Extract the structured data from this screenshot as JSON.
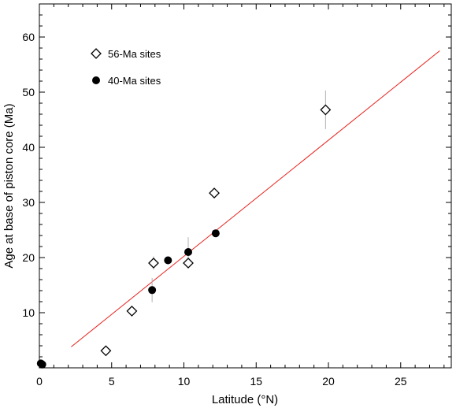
{
  "chart_data": {
    "type": "scatter",
    "title": "",
    "xlabel": "Latitude (°N)",
    "ylabel": "Age at base of piston core (Ma)",
    "xlim": [
      0,
      28.5
    ],
    "ylim": [
      0,
      66
    ],
    "x_ticks": [
      "0",
      "5",
      "10",
      "15",
      "20",
      "25"
    ],
    "x_tick_values": [
      0,
      5,
      10,
      15,
      20,
      25
    ],
    "y_ticks": [
      "10",
      "20",
      "30",
      "40",
      "50",
      "60"
    ],
    "y_tick_values": [
      10,
      20,
      30,
      40,
      50,
      60
    ],
    "grid": false,
    "legend_position": "top-left",
    "series": [
      {
        "name": "56-Ma sites",
        "marker": "open-diamond",
        "color": "#000000",
        "points": [
          {
            "x": 4.6,
            "y": 3.1
          },
          {
            "x": 6.4,
            "y": 10.3
          },
          {
            "x": 7.9,
            "y": 19.0,
            "err": 1.2
          },
          {
            "x": 10.3,
            "y": 19.0
          },
          {
            "x": 12.1,
            "y": 31.7
          },
          {
            "x": 19.8,
            "y": 46.8,
            "err": 3.5
          }
        ]
      },
      {
        "name": "40-Ma sites",
        "marker": "filled-circle",
        "color": "#000000",
        "points": [
          {
            "x": 0.1,
            "y": 0.8
          },
          {
            "x": 0.2,
            "y": 0.6
          },
          {
            "x": 7.8,
            "y": 14.1,
            "err": 2.2
          },
          {
            "x": 8.9,
            "y": 19.5
          },
          {
            "x": 10.3,
            "y": 21.0,
            "err": 2.7
          },
          {
            "x": 12.2,
            "y": 24.4
          }
        ]
      }
    ],
    "trendline": {
      "color": "#e8231e",
      "x": [
        2.2,
        27.7
      ],
      "y": [
        3.8,
        57.5
      ]
    }
  }
}
